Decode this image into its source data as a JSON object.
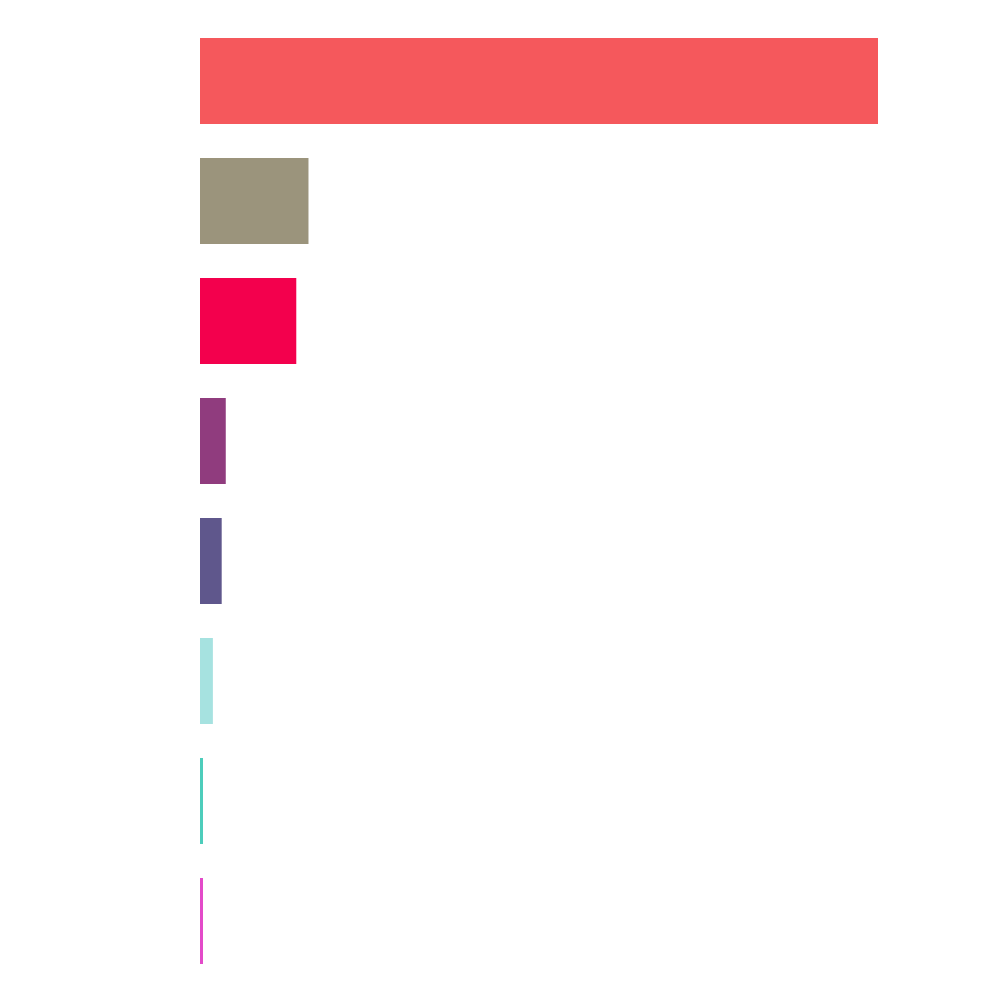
{
  "chart_data": {
    "type": "bar",
    "orientation": "horizontal",
    "grid": false,
    "legend": "none",
    "xlim": [
      0,
      100
    ],
    "values": [
      100,
      16,
      14.2,
      3.8,
      3.2,
      1.9,
      0.4,
      0.4
    ],
    "colors": [
      "#f5585c",
      "#9b947c",
      "#f3004d",
      "#903c7e",
      "#5f578c",
      "#a6e2e0",
      "#4dcdbb",
      "#e34ac9"
    ]
  }
}
